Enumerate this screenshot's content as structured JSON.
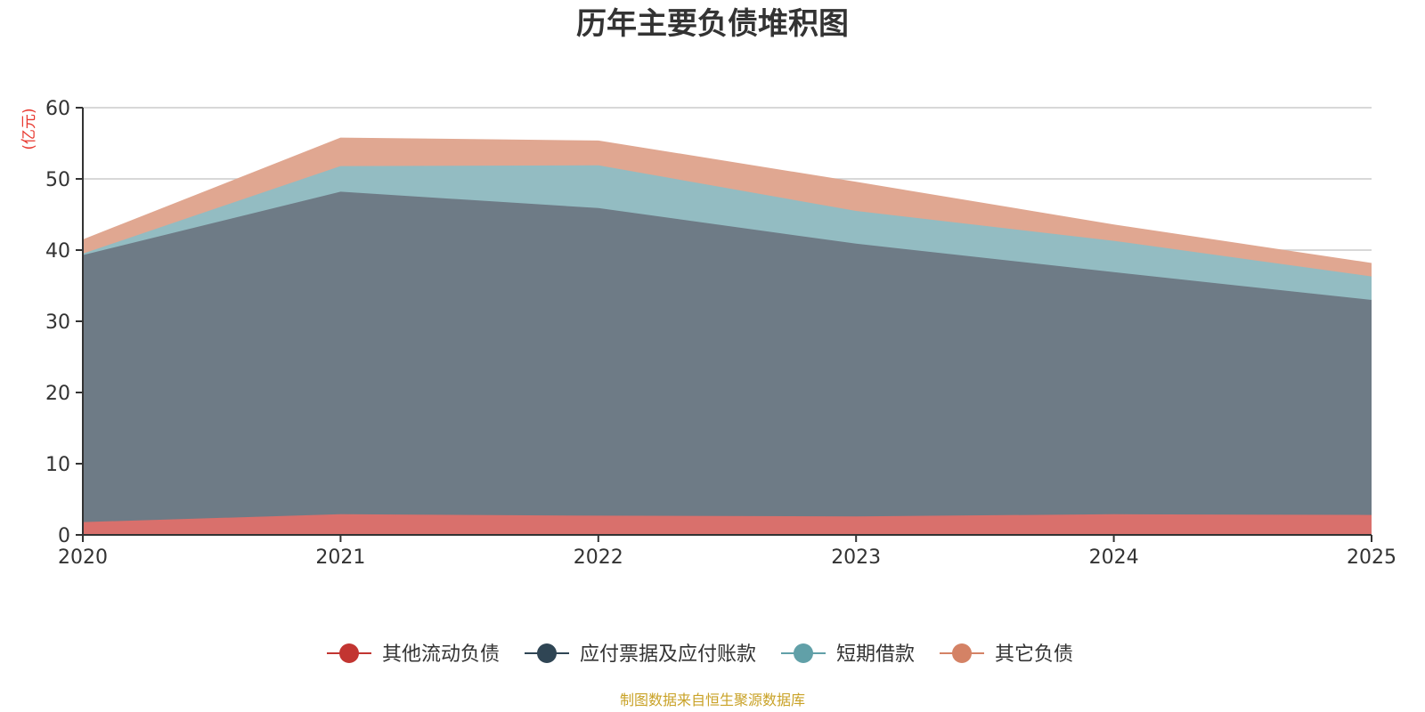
{
  "chart_data": {
    "type": "area",
    "stacked": true,
    "title": "历年主要负债堆积图",
    "ylabel": "(亿元)",
    "xlabel": "",
    "x": [
      "2020",
      "2021",
      "2022",
      "2023",
      "2024",
      "2025"
    ],
    "ylim": [
      0,
      60
    ],
    "yticks": [
      0,
      10,
      20,
      30,
      40,
      50,
      60
    ],
    "grid": true,
    "legend_position": "bottom-center",
    "series": [
      {
        "name": "其他流动负债",
        "color": "#d9706c",
        "marker_color": "#c23531",
        "values": [
          1.8,
          2.9,
          2.7,
          2.6,
          2.9,
          2.8
        ]
      },
      {
        "name": "应付票据及应付账款",
        "color": "#6e7b86",
        "marker_color": "#2f4554",
        "values": [
          37.5,
          45.3,
          43.2,
          38.3,
          34.0,
          30.2
        ]
      },
      {
        "name": "短期借款",
        "color": "#93bcc2",
        "marker_color": "#61a0a8",
        "values": [
          0.2,
          3.6,
          6.0,
          4.6,
          4.4,
          3.3
        ]
      },
      {
        "name": "其它负债",
        "color": "#e0a791",
        "marker_color": "#d48265",
        "values": [
          1.9,
          3.9,
          3.4,
          4.0,
          2.2,
          1.8
        ]
      }
    ],
    "source": "制图数据来自恒生聚源数据库"
  }
}
